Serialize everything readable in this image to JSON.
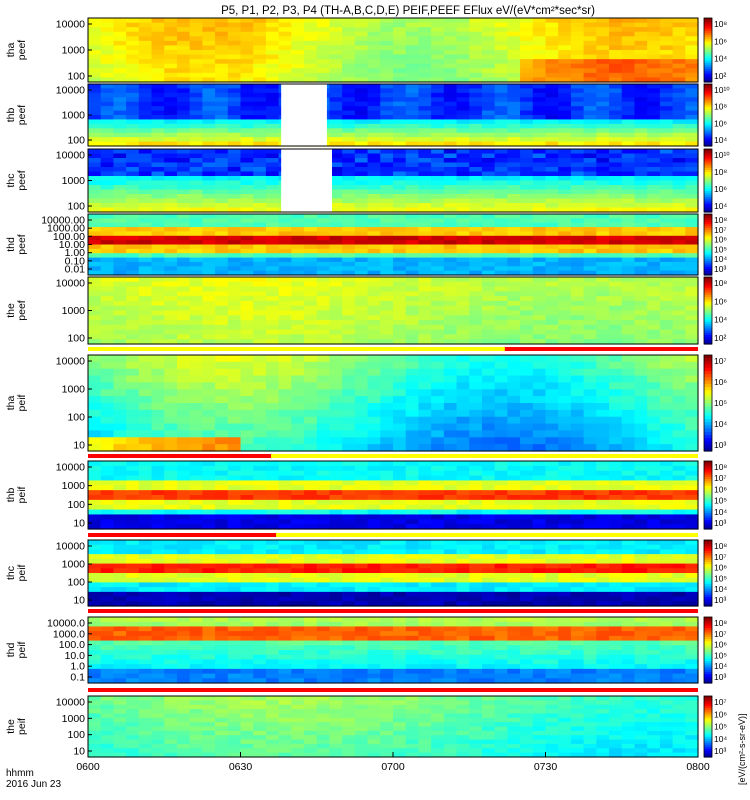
{
  "title": "P5, P1, P2, P3, P4 (TH-A,B,C,D,E) PEIF,PEEF EFlux eV/(eV*cm²*sec*sr)",
  "colorbar_unit": "[eV/(cm²-s-sr-eV)]",
  "x_axis": {
    "ticks": [
      "0600",
      "0630",
      "0700",
      "0730",
      "0800"
    ],
    "corner_labels": [
      "hhmm",
      "2016 Jun 23"
    ]
  },
  "chart_data": [
    {
      "type": "heatmap",
      "ylabel": [
        "tha",
        "peef"
      ],
      "yticks": [
        "10000",
        "1000",
        "100"
      ],
      "cbar_ticks": [
        "10⁸",
        "10⁶",
        "10⁴",
        "10²"
      ],
      "log_range": [
        2,
        9
      ],
      "data_gap": null,
      "mode_bar": null
    },
    {
      "type": "heatmap",
      "ylabel": [
        "thb",
        "peef"
      ],
      "yticks": [
        "10000",
        "1000",
        "100"
      ],
      "cbar_ticks": [
        "10¹⁰",
        "10⁸",
        "10⁶",
        "10⁴"
      ],
      "log_range": [
        3,
        10.5
      ],
      "data_gap": [
        "0638",
        "0647"
      ],
      "mode_bar": null
    },
    {
      "type": "heatmap",
      "ylabel": [
        "thc",
        "peef"
      ],
      "yticks": [
        "10000",
        "1000",
        "100"
      ],
      "cbar_ticks": [
        "10¹⁰",
        "10⁸",
        "10⁶",
        "10⁴"
      ],
      "log_range": [
        3,
        10.5
      ],
      "data_gap": [
        "0638",
        "0648"
      ],
      "mode_bar": null
    },
    {
      "type": "heatmap",
      "ylabel": [
        "thd",
        "peef"
      ],
      "yticks": [
        "10000.00",
        "1000.00",
        "100.00",
        "10.00",
        "1.00",
        "0.10",
        "0.01"
      ],
      "cbar_ticks": [
        "10⁸",
        "10⁷",
        "10⁶",
        "10⁵",
        "10⁴",
        "10³"
      ],
      "log_range": [
        3,
        9
      ],
      "data_gap": null,
      "mode_bar": null
    },
    {
      "type": "heatmap",
      "ylabel": [
        "the",
        "peef"
      ],
      "yticks": [
        "10000",
        "1000",
        "100"
      ],
      "cbar_ticks": [
        "10⁸",
        "10⁶",
        "10⁴",
        "10²"
      ],
      "log_range": [
        2,
        9
      ],
      "data_gap": null,
      "mode_bar": [
        "0722",
        "0800"
      ]
    },
    {
      "type": "heatmap",
      "ylabel": [
        "tha",
        "peif"
      ],
      "yticks": [
        "10000",
        "1000",
        "100",
        "10"
      ],
      "cbar_ticks": [
        "10⁷",
        "10⁶",
        "10⁵",
        "10⁴",
        "10³"
      ],
      "log_range": [
        3,
        7.5
      ],
      "data_gap": null,
      "mode_bar": [
        "0600",
        "0636"
      ]
    },
    {
      "type": "heatmap",
      "ylabel": [
        "thb",
        "peif"
      ],
      "yticks": [
        "10000",
        "1000",
        "100",
        "10"
      ],
      "cbar_ticks": [
        "10⁸",
        "10⁷",
        "10⁶",
        "10⁵",
        "10⁴",
        "10³"
      ],
      "log_range": [
        3,
        8
      ],
      "data_gap": null,
      "mode_bar": [
        "0600",
        "0637"
      ]
    },
    {
      "type": "heatmap",
      "ylabel": [
        "thc",
        "peif"
      ],
      "yticks": [
        "10000",
        "1000",
        "100",
        "10"
      ],
      "cbar_ticks": [
        "10⁸",
        "10⁷",
        "10⁶",
        "10⁵",
        "10⁴",
        "10³"
      ],
      "log_range": [
        3,
        8
      ],
      "data_gap": null,
      "mode_bar": [
        "0600",
        "0800"
      ]
    },
    {
      "type": "heatmap",
      "ylabel": [
        "thd",
        "peif"
      ],
      "yticks": [
        "10000.0",
        "1000.0",
        "100.0",
        "10.0",
        "1.0",
        "0.1"
      ],
      "cbar_ticks": [
        "10⁸",
        "10⁷",
        "10⁶",
        "10⁵",
        "10⁴",
        "10³"
      ],
      "log_range": [
        3,
        8
      ],
      "data_gap": null,
      "mode_bar": [
        "0600",
        "0800"
      ]
    },
    {
      "type": "heatmap",
      "ylabel": [
        "the",
        "peif"
      ],
      "yticks": [
        "10000",
        "1000",
        "100",
        "10"
      ],
      "cbar_ticks": [
        "10⁷",
        "10⁶",
        "10⁵",
        "10⁴",
        "10³"
      ],
      "log_range": [
        3,
        7.5
      ],
      "data_gap": null,
      "mode_bar": null
    }
  ]
}
